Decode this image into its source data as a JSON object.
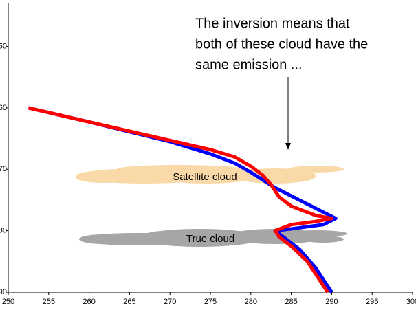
{
  "chart_data": {
    "type": "line",
    "annotations": {
      "text_lines": [
        "The inversion means that",
        "both of these cloud have the",
        "same emission ..."
      ],
      "satellite_cloud": "Satellite cloud",
      "true_cloud": "True cloud"
    },
    "series": [
      {
        "color": "#0000ff",
        "x": [
          252.5,
          260,
          270,
          275,
          278,
          280,
          283,
          286,
          289,
          290.5,
          289,
          285,
          283,
          284,
          286,
          288,
          289.5,
          290
        ],
        "values": [
          60,
          62.3,
          65.5,
          67.5,
          69,
          70.5,
          73,
          75,
          77,
          78,
          79,
          79.7,
          80,
          81,
          83,
          86,
          89,
          90
        ]
      },
      {
        "color": "#ff0000",
        "x": [
          252.5,
          260,
          270,
          275,
          278,
          280,
          281.5,
          282.5,
          283.5,
          285,
          288,
          290,
          288,
          285,
          283,
          283.5,
          285,
          287,
          288.5,
          289.5
        ],
        "values": [
          60,
          62.3,
          65.3,
          66.8,
          68,
          69.5,
          71,
          72.5,
          74.5,
          76,
          77.5,
          78,
          78.5,
          79,
          80,
          81,
          82.5,
          85,
          88,
          90
        ]
      }
    ],
    "xlim": [
      250,
      300
    ],
    "xticks": [
      250,
      255,
      260,
      265,
      270,
      275,
      280,
      285,
      290,
      295,
      300
    ],
    "ylim": [
      90,
      43
    ],
    "yticks": [
      50,
      60,
      70,
      80,
      90
    ],
    "inverted_y": true
  }
}
